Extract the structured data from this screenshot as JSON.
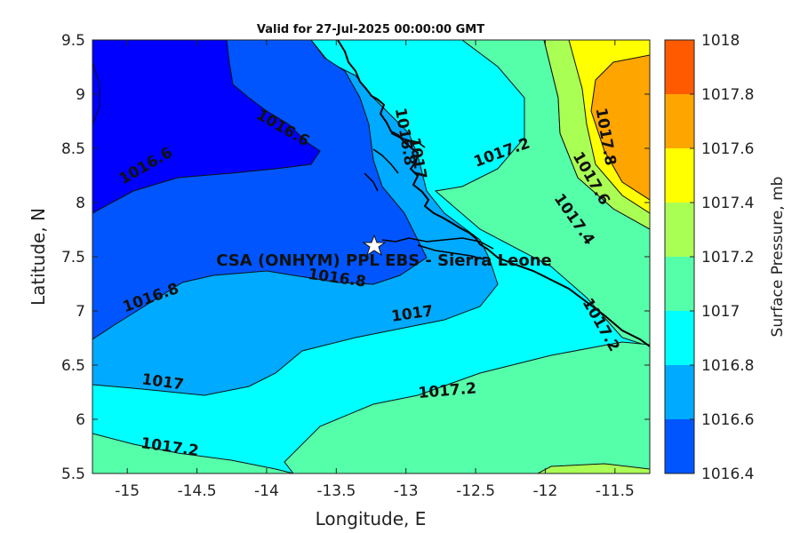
{
  "title": "Valid for 27-Jul-2025 00:00:00 GMT",
  "xlabel": "Longitude, E",
  "ylabel": "Latitude, N",
  "colorbar_label": "Surface Pressure, mb",
  "site_label": "CSA (ONHYM) PPL EBS  - Sierra Leone",
  "site_marker": "star-icon",
  "x_ticks": [
    "-15",
    "-14.5",
    "-14",
    "-13.5",
    "-13",
    "-12.5",
    "-12",
    "-11.5"
  ],
  "y_ticks": [
    "9.5",
    "9",
    "8.5",
    "8",
    "7.5",
    "7",
    "6.5",
    "6",
    "5.5"
  ],
  "colorbar_ticks": [
    "1018",
    "1017.8",
    "1017.6",
    "1017.4",
    "1017.2",
    "1017",
    "1016.8",
    "1016.6",
    "1016.4"
  ],
  "colorbar_colors": [
    "#ff5a00",
    "#ffa500",
    "#ffff00",
    "#aaff55",
    "#55ffaa",
    "#00ffff",
    "#00aaff",
    "#0055ff",
    "#0000ff"
  ],
  "contour_labels": [
    {
      "text": "1016.6",
      "lon": -14.85,
      "lat": 8.3
    },
    {
      "text": "1016.6",
      "lon": -13.9,
      "lat": 8.65
    },
    {
      "text": "1016.8",
      "lon": -13.04,
      "lat": 8.6
    },
    {
      "text": "1017",
      "lon": -12.95,
      "lat": 8.4
    },
    {
      "text": "1017.2",
      "lon": -12.3,
      "lat": 8.42
    },
    {
      "text": "1017.8",
      "lon": -11.6,
      "lat": 8.6
    },
    {
      "text": "1017.6",
      "lon": -11.7,
      "lat": 8.2
    },
    {
      "text": "1017.4",
      "lon": -11.82,
      "lat": 7.82
    },
    {
      "text": "1016.8",
      "lon": -14.82,
      "lat": 7.08
    },
    {
      "text": "1016.8",
      "lon": -13.5,
      "lat": 7.26
    },
    {
      "text": "1017",
      "lon": -12.95,
      "lat": 6.93
    },
    {
      "text": "1017.2",
      "lon": -11.63,
      "lat": 6.85
    },
    {
      "text": "1017",
      "lon": -14.75,
      "lat": 6.3
    },
    {
      "text": "1017.2",
      "lon": -12.7,
      "lat": 6.22
    },
    {
      "text": "1017.2",
      "lon": -14.7,
      "lat": 5.7
    }
  ]
}
